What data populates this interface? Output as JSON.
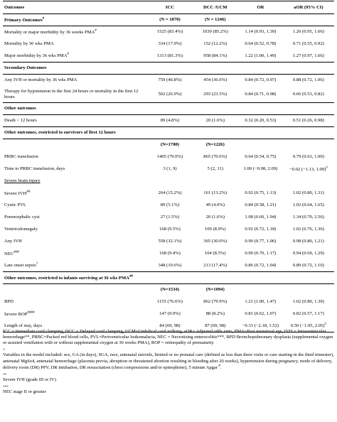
{
  "table": {
    "headers": [
      "Outcomes",
      "ICC",
      "DCC /UCM",
      "OR",
      "aOR (95% CI)"
    ],
    "rows": [
      {
        "type": "section",
        "label": "Primary Outcomes",
        "sup": "#",
        "icc": "(N = 1870)",
        "dcc": "(N = 1246)",
        "or": "",
        "aor": ""
      },
      {
        "type": "data",
        "label": "Mortality or major morbidity by 36 weeks PMA",
        "sup": "#",
        "icc": "1525 (83.4%)",
        "dcc": "1039 (85.2%)",
        "or": "1.14 (0.93, 1.39)",
        "aor": "1.26 (0.95, 1.66)"
      },
      {
        "type": "data",
        "label": "Mortality by 36 wks PMA",
        "sup": "",
        "icc": "334 (17.9%)",
        "dcc": "152 (12.2%)",
        "or": "0.64 (0.52, 0.78)",
        "aor": "0.71 (0.55, 0.92)"
      },
      {
        "type": "data",
        "label": "Major morbidity by 36 wks PMA",
        "sup": "#",
        "icc": "1313 (81.3%)",
        "dcc": "958 (84.1%)",
        "or": "1.22 (1.00, 1.49)",
        "aor": "1.27 (0.97, 1.66)"
      },
      {
        "type": "section",
        "label": "Secondary Outcomes",
        "sup": "",
        "icc": "",
        "dcc": "",
        "or": "",
        "aor": ""
      },
      {
        "type": "data",
        "label": "Any IVH or mortality by 36 wks PMA",
        "sup": "",
        "icc": "759 (40.8%)",
        "dcc": "454 (36.6%)",
        "or": "0.84 (0.72, 0.97)",
        "aor": "0.88 (0.72, 1.06)"
      },
      {
        "type": "data2",
        "label": "Therapy for hypotension in the first 24 hours or mortality in the first 12 hours",
        "sup": "",
        "icc": "502 (26.9%)",
        "dcc": "293 (23.5%)",
        "or": "0.84 (0.71, 0.98)",
        "aor": "0.66 (0.53, 0.82)"
      },
      {
        "type": "section",
        "label": "Other outcomes",
        "sup": "",
        "icc": "",
        "dcc": "",
        "or": "",
        "aor": ""
      },
      {
        "type": "data",
        "label": "Death < 12 hours",
        "sup": "",
        "icc": "89 (4.8%)",
        "dcc": "20 (1.6%)",
        "or": "0.32 (0.20, 0.53)",
        "aor": "0.51 (0.26, 0.98)"
      },
      {
        "type": "section",
        "label": "Other outcomes, restricted to survivors of first 12 hours",
        "sup": "",
        "icc": "",
        "dcc": "",
        "or": "",
        "aor": ""
      },
      {
        "type": "nrow",
        "label": "",
        "sup": "",
        "icc": "(N=1780)",
        "dcc": "(N=1226)",
        "or": "",
        "aor": ""
      },
      {
        "type": "data",
        "label": "PRBC transfusion",
        "sup": "",
        "icc": "1405 (79.0%)",
        "dcc": "865 (70.6%)",
        "or": "0.64 (0.54, 0.75)",
        "aor": "0.79 (0.63, 1.00)"
      },
      {
        "type": "data",
        "label": "Time to PRBC transfusion, days",
        "sup": "",
        "icc": "3 (1, 9)",
        "dcc": "5 (2, 11)",
        "or": "1.00 (−0.08, 2.09)",
        "aor": "−0.02 (−1.13, 1.09)",
        "aor_sup": "◊"
      },
      {
        "type": "subhead",
        "label": "Severe brain injury",
        "sup": "",
        "icc": "",
        "dcc": "",
        "or": "",
        "aor": ""
      },
      {
        "type": "data",
        "label": "Severe IVH",
        "sup": "##",
        "icc": "264 (15.2%)",
        "dcc": "161 (13.2%)",
        "or": "0.92 (0.75, 1.13)",
        "aor": "1.02 (0.80, 1.31)"
      },
      {
        "type": "data",
        "label": "Cystic PVL",
        "sup": "",
        "icc": "89 (5.1%)",
        "dcc": "49 (4.0%)",
        "or": "0.84 (0.58, 1.21)",
        "aor": "1.02 (0.64, 1.65)"
      },
      {
        "type": "data",
        "label": "Porencephalic cyst",
        "sup": "",
        "icc": "27 (1.5%)",
        "dcc": "20 (1.6%)",
        "or": "1.08 (0.60, 1.94)",
        "aor": "1.34 (0.70, 2.56)"
      },
      {
        "type": "data",
        "label": "Ventriculomegaly",
        "sup": "",
        "icc": "168 (9.5%)",
        "dcc": "109 (8.9%)",
        "or": "0.92 (0.72, 1.18)",
        "aor": "1.02 (0.76, 1.36)"
      },
      {
        "type": "data",
        "label": "Any IVH",
        "sup": "",
        "icc": "558 (32.1%)",
        "dcc": "365 (30.0%)",
        "or": "0.90 (0.77, 1.06)",
        "aor": "0.98 (0.80, 1.21)"
      },
      {
        "type": "data",
        "label": "NEC",
        "sup": "###",
        "icc": "168 (9.4%)",
        "dcc": "104 (8.5%)",
        "or": "0.90 (0.70, 1.17)",
        "aor": "0.94 (0.69, 1.29)"
      },
      {
        "type": "data",
        "label": "Late onset sepsis",
        "sup": "†",
        "icc": "348 (19.6%)",
        "dcc": "213 (17.4%)",
        "or": "0.86 (0.72, 1.04)",
        "aor": "0.89 (0.72, 1.10)"
      },
      {
        "type": "section",
        "label": "Other outcomes, restricted to infants surviving at 36 wks PMA",
        "sup": "##",
        "icc": "",
        "dcc": "",
        "or": "",
        "aor": ""
      },
      {
        "type": "nrow",
        "label": "",
        "sup": "",
        "icc": "(N=1534)",
        "dcc": "(N=1094)",
        "or": "",
        "aor": ""
      },
      {
        "type": "data",
        "label": "BPD",
        "sup": "",
        "icc": "1155 (76.6%)",
        "dcc": "862 (79.9%)",
        "or": "1.21 (1.00, 1.47)",
        "aor": "1.02 (0.80, 1.30)"
      },
      {
        "type": "data",
        "label": "Severe ROP",
        "sup": "####",
        "icc": "147 (9.9%)",
        "dcc": "88 (8.2%)",
        "or": "0.81 (0.62, 1.07)",
        "aor": "0.82 (0.57, 1.17)"
      },
      {
        "type": "data",
        "label": "Length of stay, days",
        "sup": "",
        "icc": "84 (69, 98)",
        "dcc": "87 (69, 98)",
        "or": "−0.33 (−2.18, 1.52)",
        "aor": "0.50 (−1.05, 2.05)",
        "aor_sup": "◊",
        "last": true
      }
    ]
  },
  "notes": {
    "abbrev": "ICC = Immediate cord clamping, DCC = Delayed cord clamping, UCM=Umbilical cord milking, aOR= Adjusted odds ratio, PMA=Post menstrual age, IVH = Intraventricular hemorrhage**, PRBC=Packed red blood cells, PVL=Periventricular leukomalacia, NEC = Necrotizing enterocolitis***, BPD Bronchopulmonary dysplasia (supplemental oxygen or assisted ventilation with or without supplemental oxygen at 36 weeks PMA), ROP = retinopathy of prematurity",
    "mark1": "*",
    "variables": "Variables in the model included: sex, GA (in days), SGA, race, antenatal steroids, limited or no prenatal care (defined as less than three visits or care starting in the third trimester), antenatal MgSo4, antenatal hemorrhage (placenta previa, abruption or threatened abortion resulting in bleeding after 20 weeks), hypertension during pregnancy, mode of delivery, delivery room (DR) PPV, DR intubation, DR resuscitation (chest compressions and/or epinephrine), 5 minute Apgar",
    "variables_sup": "#",
    "variables_end": ".",
    "mark2": "**",
    "severe_ivh": "Severe IVH (grade III or IV)",
    "mark3": "***",
    "nec": "NEC stage II or greater"
  }
}
